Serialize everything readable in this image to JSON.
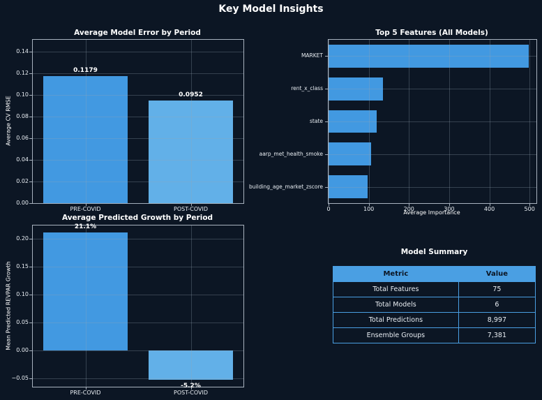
{
  "page_title": "Key Model Insights",
  "colors": {
    "background": "#0c1624",
    "bar_primary": "#4299e1",
    "bar_secondary": "#62b0e8",
    "table_header_bg": "#4a9fe3",
    "spine": "#a9b3bf",
    "text": "#ffffff"
  },
  "chart_data": [
    {
      "id": "avg-model-error",
      "type": "bar",
      "title": "Average Model Error by Period",
      "ylabel": "Average CV RMSE",
      "categories": [
        "PRE-COVID",
        "POST-COVID"
      ],
      "values": [
        0.1179,
        0.0952
      ],
      "bar_labels": [
        "0.1179",
        "0.0952"
      ],
      "bar_colors": [
        "#4299e1",
        "#62b0e8"
      ],
      "ylim": [
        0,
        0.1513
      ],
      "yticks": [
        0,
        0.02,
        0.04,
        0.06,
        0.08,
        0.1,
        0.12,
        0.14
      ],
      "ytick_labels": [
        "0.00",
        "0.02",
        "0.04",
        "0.06",
        "0.08",
        "0.10",
        "0.12",
        "0.14"
      ],
      "grid": true
    },
    {
      "id": "top-features",
      "type": "barh",
      "title": "Top 5 Features (All Models)",
      "xlabel": "Average Importance",
      "categories": [
        "MARKET",
        "rent_x_class",
        "state",
        "aarp_met_health_smoke",
        "building_age_market_zscore"
      ],
      "values": [
        498,
        135,
        120,
        105,
        97
      ],
      "bar_color": "#4299e1",
      "xlim": [
        0,
        517
      ],
      "xticks": [
        0,
        100,
        200,
        300,
        400,
        500
      ],
      "xtick_labels": [
        "0",
        "100",
        "200",
        "300",
        "400",
        "500"
      ],
      "grid": true
    },
    {
      "id": "growth-by-period",
      "type": "bar",
      "title": "Average Predicted Growth by Period",
      "ylabel": "Mean Predicted REVPAR Growth",
      "categories": [
        "PRE-COVID",
        "POST-COVID"
      ],
      "values": [
        0.211,
        -0.052
      ],
      "bar_labels": [
        "21.1%",
        "-5.2%"
      ],
      "bar_colors": [
        "#4299e1",
        "#62b0e8"
      ],
      "ylim": [
        -0.065,
        0.224
      ],
      "yticks": [
        0.2,
        0.15,
        0.1,
        0.05,
        0,
        -0.05
      ],
      "ytick_labels": [
        "0.20",
        "0.15",
        "0.10",
        "0.05",
        "0.00",
        "−0.05"
      ],
      "grid": true
    }
  ],
  "summary_table": {
    "title": "Model Summary",
    "columns": [
      "Metric",
      "Value"
    ],
    "rows": [
      {
        "metric": "Total Features",
        "value": "75"
      },
      {
        "metric": "Total Models",
        "value": "6"
      },
      {
        "metric": "Total Predictions",
        "value": "8,997"
      },
      {
        "metric": "Ensemble Groups",
        "value": "7,381"
      }
    ]
  }
}
